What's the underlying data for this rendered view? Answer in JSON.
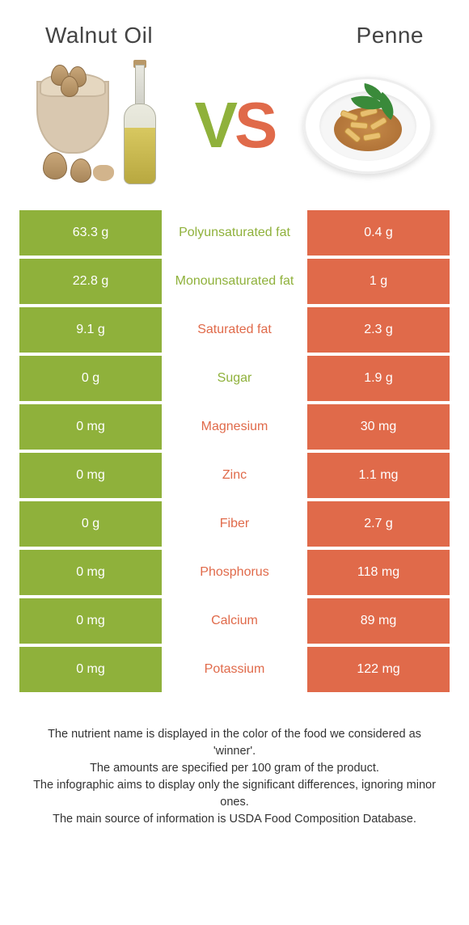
{
  "colors": {
    "left_bg": "#8fb13b",
    "right_bg": "#e06a4a",
    "left_text": "#8fb13b",
    "right_text": "#e06a4a"
  },
  "left_title": "Walnut oil",
  "right_title": "Penne",
  "vs_v": "V",
  "vs_s": "S",
  "rows": [
    {
      "left": "63.3 g",
      "label": "Polyunsaturated fat",
      "right": "0.4 g",
      "winner": "left"
    },
    {
      "left": "22.8 g",
      "label": "Monounsaturated fat",
      "right": "1 g",
      "winner": "left"
    },
    {
      "left": "9.1 g",
      "label": "Saturated fat",
      "right": "2.3 g",
      "winner": "right"
    },
    {
      "left": "0 g",
      "label": "Sugar",
      "right": "1.9 g",
      "winner": "left"
    },
    {
      "left": "0 mg",
      "label": "Magnesium",
      "right": "30 mg",
      "winner": "right"
    },
    {
      "left": "0 mg",
      "label": "Zinc",
      "right": "1.1 mg",
      "winner": "right"
    },
    {
      "left": "0 g",
      "label": "Fiber",
      "right": "2.7 g",
      "winner": "right"
    },
    {
      "left": "0 mg",
      "label": "Phosphorus",
      "right": "118 mg",
      "winner": "right"
    },
    {
      "left": "0 mg",
      "label": "Calcium",
      "right": "89 mg",
      "winner": "right"
    },
    {
      "left": "0 mg",
      "label": "Potassium",
      "right": "122 mg",
      "winner": "right"
    }
  ],
  "footer_lines": [
    "The nutrient name is displayed in the color of the food we considered as 'winner'.",
    "The amounts are specified per 100 gram of the product.",
    "The infographic aims to display only the significant differences, ignoring minor ones.",
    "The main source of information is USDA Food Composition Database."
  ]
}
